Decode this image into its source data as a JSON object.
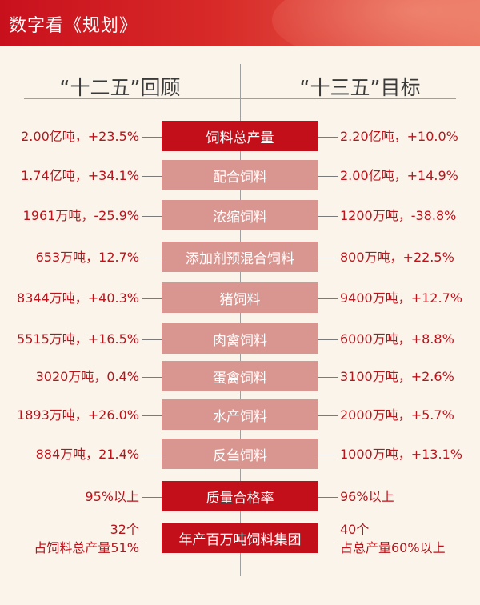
{
  "header": {
    "title": "数字看《规划》"
  },
  "columns": {
    "left_title": "“十二五”回顾",
    "right_title": "“十三五”目标"
  },
  "rows": [
    {
      "label": "饲料总产量",
      "left": "2.00亿吨，+23.5%",
      "right": "2.20亿吨，+10.0%"
    },
    {
      "label": "配合饲料",
      "left": "1.74亿吨，+34.1%",
      "right": "2.00亿吨，+14.9%"
    },
    {
      "label": "浓缩饲料",
      "left": "1961万吨，-25.9%",
      "right": "1200万吨，-38.8%"
    },
    {
      "label": "添加剂预混合饲料",
      "left": "653万吨，12.7%",
      "right": "800万吨，+22.5%"
    },
    {
      "label": "猪饲料",
      "left": "8344万吨，+40.3%",
      "right": "9400万吨，+12.7%"
    },
    {
      "label": "肉禽饲料",
      "left": "5515万吨，+16.5%",
      "right": "6000万吨，+8.8%"
    },
    {
      "label": "蛋禽饲料",
      "left": "3020万吨，0.4%",
      "right": "3100万吨，+2.6%"
    },
    {
      "label": "水产饲料",
      "left": "1893万吨，+26.0%",
      "right": "2000万吨，+5.7%"
    },
    {
      "label": "反刍饲料",
      "left": "884万吨，21.4%",
      "right": "1000万吨，+13.1%"
    },
    {
      "label": "质量合格率",
      "left": "95%以上",
      "right": "96%以上"
    },
    {
      "label": "年产百万吨饲料集团",
      "left_line1": "32个",
      "left_line2": "占饲料总产量51%",
      "right_line1": "40个",
      "right_line2": "占总产量60%以上"
    }
  ],
  "colors": {
    "header_red": "#c8101d",
    "highlight_box": "#c20f1a",
    "normal_box": "#d9958f",
    "value_text": "#b7141c"
  }
}
